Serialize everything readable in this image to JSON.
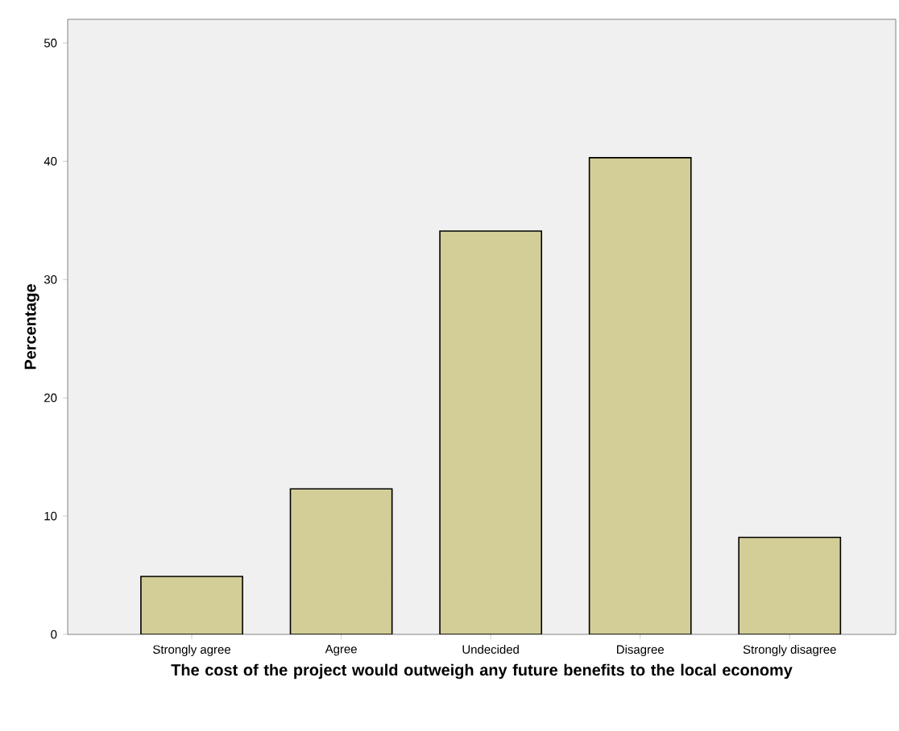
{
  "chart_data": {
    "type": "bar",
    "xlabel": "The cost of the project would outweigh any future benefits to the local economy",
    "ylabel": "Percentage",
    "categories": [
      "Strongly agree",
      "Agree",
      "Undecided",
      "Disagree",
      "Strongly disagree"
    ],
    "values": [
      4.9,
      12.3,
      34.1,
      40.3,
      8.2
    ],
    "color": "#d3ce97",
    "ylim": [
      0,
      52
    ],
    "yticks": [
      0,
      10,
      20,
      30,
      40,
      50
    ],
    "grid": false
  }
}
